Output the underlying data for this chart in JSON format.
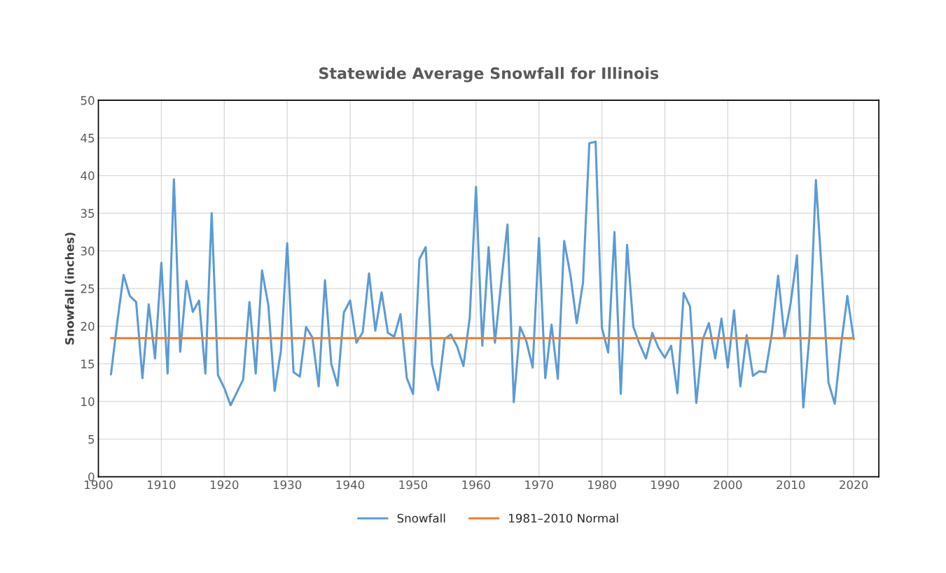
{
  "chart_data": {
    "type": "line",
    "title": "Statewide Average Snowfall for Illinois",
    "ylabel": "Snowfall (inches)",
    "xlim": [
      1900,
      2024
    ],
    "xticks": [
      1900,
      1910,
      1920,
      1930,
      1940,
      1950,
      1960,
      1970,
      1980,
      1990,
      2000,
      2010,
      2020
    ],
    "ylim": [
      0,
      50
    ],
    "yticks": [
      0,
      5,
      10,
      15,
      20,
      25,
      30,
      35,
      40,
      45,
      50
    ],
    "grid": true,
    "legend": "bottom",
    "marker": "none",
    "line_style": "solid",
    "series": [
      {
        "name": "Snowfall",
        "color": "#5b9bd5",
        "x": [
          1902,
          1903,
          1904,
          1905,
          1906,
          1907,
          1908,
          1909,
          1910,
          1911,
          1912,
          1913,
          1914,
          1915,
          1916,
          1917,
          1918,
          1919,
          1920,
          1921,
          1922,
          1923,
          1924,
          1925,
          1926,
          1927,
          1928,
          1929,
          1930,
          1931,
          1932,
          1933,
          1934,
          1935,
          1936,
          1937,
          1938,
          1939,
          1940,
          1941,
          1942,
          1943,
          1944,
          1945,
          1946,
          1947,
          1948,
          1949,
          1950,
          1951,
          1952,
          1953,
          1954,
          1955,
          1956,
          1957,
          1958,
          1959,
          1960,
          1961,
          1962,
          1963,
          1964,
          1965,
          1966,
          1967,
          1968,
          1969,
          1970,
          1971,
          1972,
          1973,
          1974,
          1975,
          1976,
          1977,
          1978,
          1979,
          1980,
          1981,
          1982,
          1983,
          1984,
          1985,
          1986,
          1987,
          1988,
          1989,
          1990,
          1991,
          1992,
          1993,
          1994,
          1995,
          1996,
          1997,
          1998,
          1999,
          2000,
          2001,
          2002,
          2003,
          2004,
          2005,
          2006,
          2007,
          2008,
          2009,
          2010,
          2011,
          2012,
          2013,
          2014,
          2015,
          2016,
          2017,
          2018,
          2019,
          2020
        ],
        "values": [
          13.6,
          20.5,
          26.8,
          24.0,
          23.2,
          13.1,
          22.9,
          15.7,
          28.4,
          13.7,
          39.5,
          16.6,
          26.0,
          21.9,
          23.4,
          13.7,
          35.0,
          13.5,
          11.8,
          9.5,
          11.2,
          12.9,
          23.2,
          13.7,
          27.4,
          22.8,
          11.4,
          16.7,
          31.0,
          13.9,
          13.3,
          19.9,
          18.5,
          12.0,
          26.1,
          15.0,
          12.1,
          21.8,
          23.4,
          17.8,
          19.2,
          27.0,
          19.4,
          24.5,
          19.1,
          18.6,
          21.6,
          13.1,
          11.0,
          28.9,
          30.5,
          15.0,
          11.5,
          18.3,
          18.9,
          17.3,
          14.7,
          21.1,
          38.5,
          17.4,
          30.5,
          17.8,
          25.8,
          33.5,
          9.9,
          19.9,
          18.0,
          14.5,
          31.7,
          13.1,
          20.2,
          13.0,
          31.3,
          26.8,
          20.4,
          25.8,
          44.3,
          44.5,
          19.8,
          16.5,
          32.5,
          11.0,
          30.8,
          19.9,
          17.6,
          15.7,
          19.1,
          17.1,
          15.8,
          17.4,
          11.1,
          24.4,
          22.6,
          9.8,
          18.2,
          20.4,
          15.7,
          21.0,
          14.5,
          22.1,
          12.0,
          18.8,
          13.4,
          14.0,
          13.9,
          19.0,
          26.7,
          18.6,
          23.1,
          29.4,
          9.2,
          18.9,
          39.4,
          26.3,
          12.5,
          9.7,
          17.5,
          24.0,
          18.3
        ]
      },
      {
        "name": "1981–2010 Normal",
        "color": "#ed7d31",
        "x": [
          1902,
          2020
        ],
        "values": [
          18.4,
          18.4
        ]
      }
    ]
  }
}
